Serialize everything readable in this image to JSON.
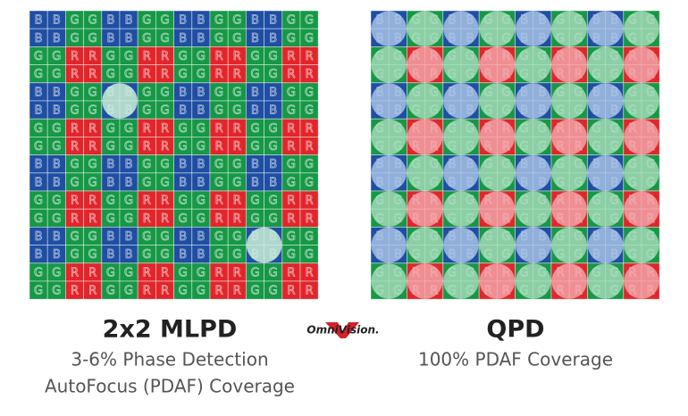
{
  "left_panel": {
    "title": "2x2 MLPD",
    "caption_lines": [
      "3-6% Phase Detection",
      "AutoFocus (PDAF) Coverage"
    ],
    "pattern": [
      [
        "B",
        "G"
      ],
      [
        "G",
        "R"
      ]
    ]
  },
  "right_panel": {
    "title": "QPD",
    "caption_lines": [
      "100% PDAF Coverage"
    ],
    "pattern": [
      [
        "B",
        "G"
      ],
      [
        "G",
        "R"
      ]
    ]
  },
  "logo": "OmniVision."
}
